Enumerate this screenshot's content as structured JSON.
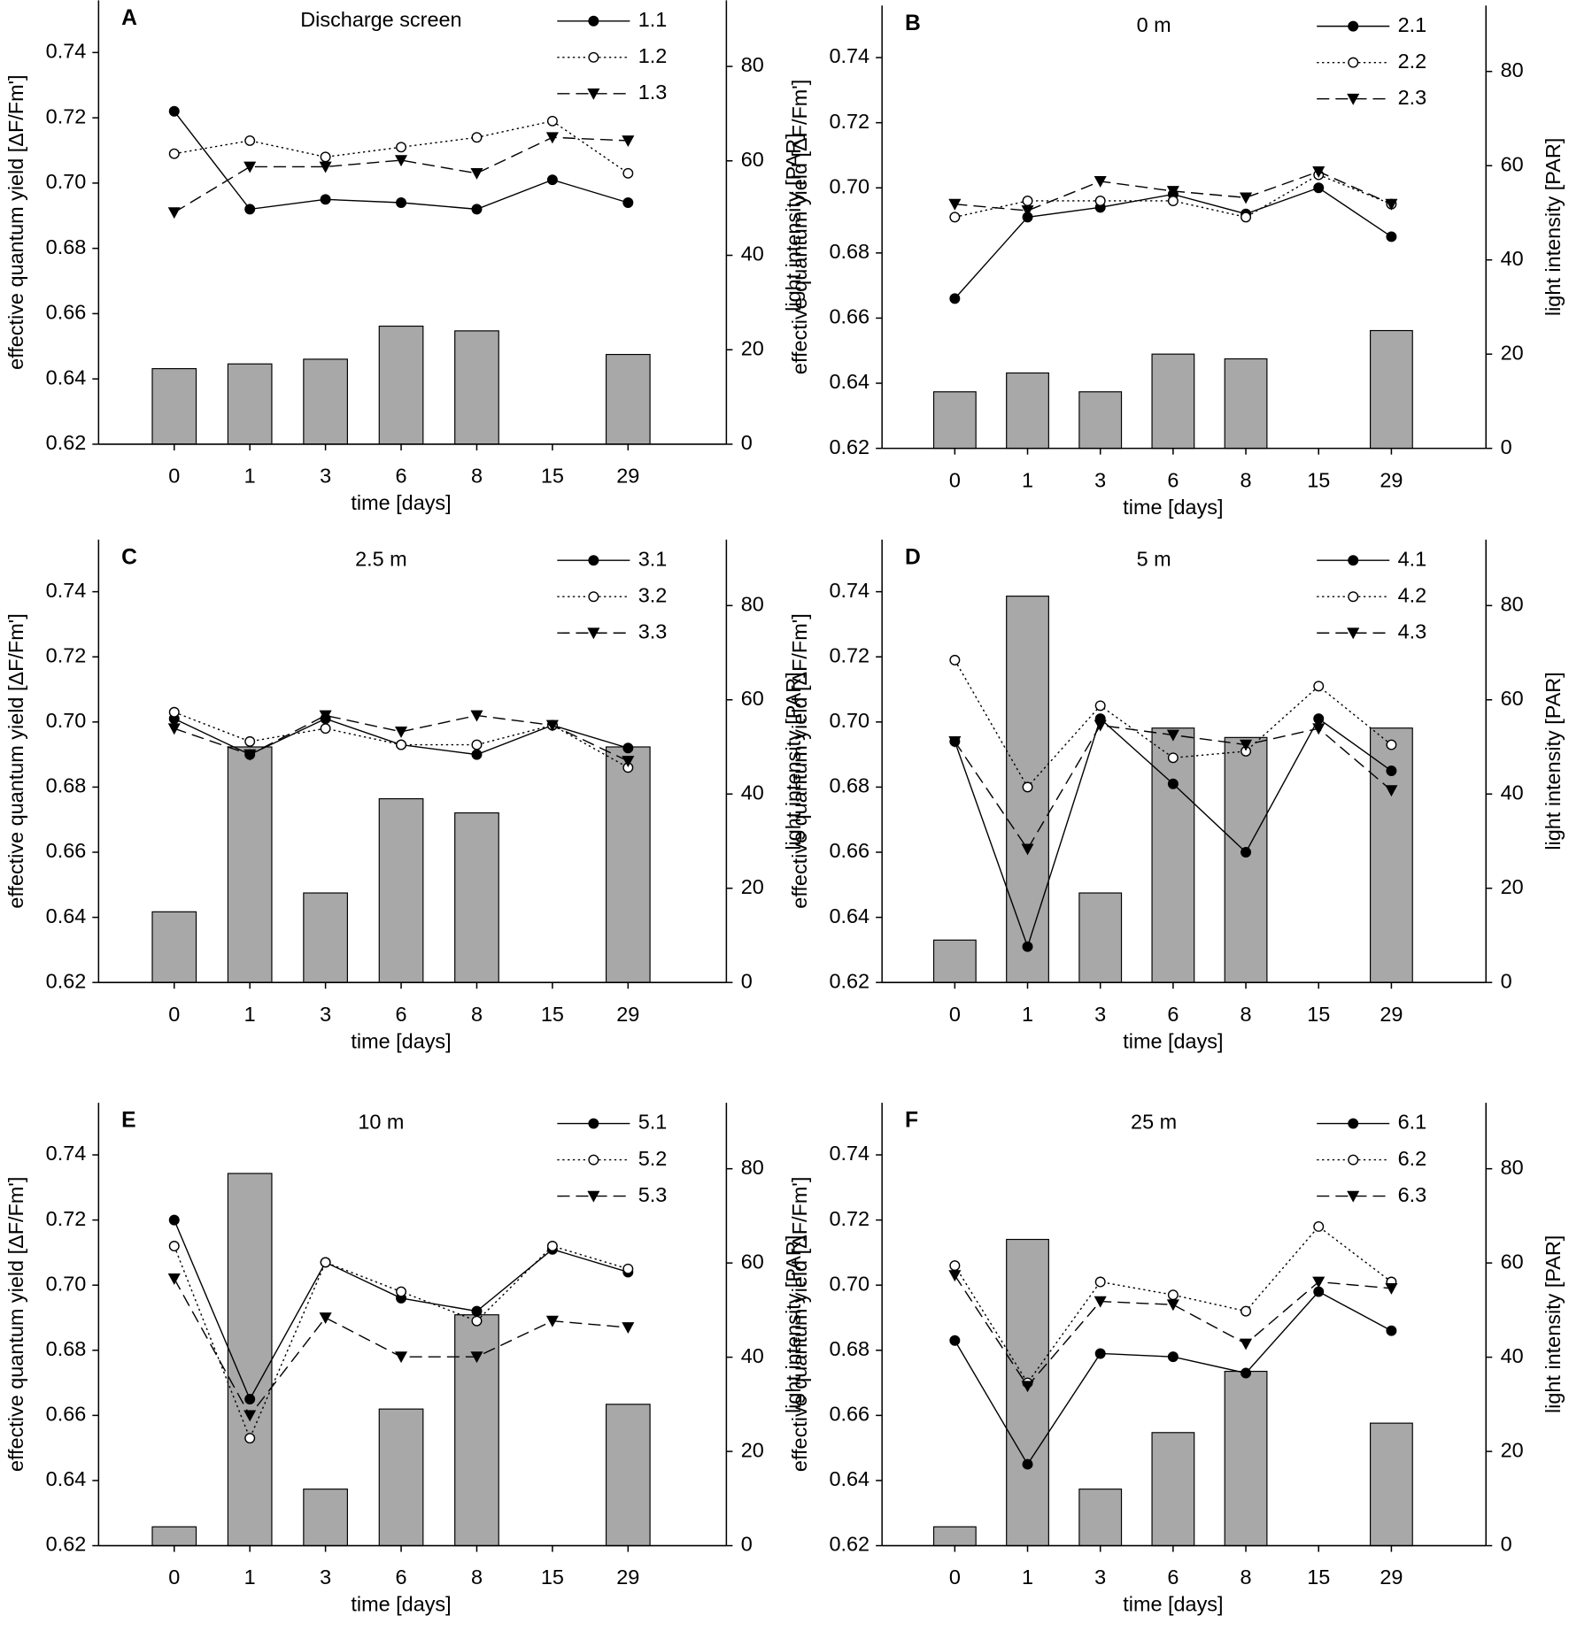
{
  "chart_data": [
    {
      "type": "bar-line",
      "panel_label": "A",
      "title": "Discharge screen",
      "xlabel": "time [days]",
      "ylabel": "effective quantum yield [ΔF/Fm']",
      "y2label": "light intensity [PAR]",
      "categories": [
        "0",
        "1",
        "3",
        "6",
        "8",
        "15",
        "29"
      ],
      "series": [
        {
          "name": "1.1",
          "color": "#000000",
          "line_style": "solid",
          "marker": "filled-circle",
          "values": [
            0.722,
            0.692,
            0.695,
            0.694,
            0.692,
            0.701,
            0.694
          ]
        },
        {
          "name": "1.2",
          "color": "#000000",
          "line_style": "dotted",
          "marker": "open-circle",
          "values": [
            0.709,
            0.713,
            0.708,
            0.711,
            0.714,
            0.719,
            0.703
          ]
        },
        {
          "name": "1.3",
          "color": "#000000",
          "line_style": "dashed",
          "marker": "filled-triangle",
          "values": [
            0.691,
            0.705,
            0.705,
            0.707,
            0.703,
            0.714,
            0.713
          ]
        }
      ],
      "bars": {
        "axis": "y2",
        "color": "#a8a8a8",
        "values": [
          16,
          17,
          18,
          25,
          24,
          null,
          19
        ]
      },
      "ylim": [
        0.62,
        0.756
      ],
      "yticks": [
        0.62,
        0.64,
        0.66,
        0.68,
        {
          "value": 0.7,
          "label": "0.70"
        },
        0.72,
        0.74
      ],
      "y2lim": [
        0,
        94
      ],
      "y2ticks": [
        0,
        20,
        40,
        60,
        80
      ]
    },
    {
      "type": "bar-line",
      "panel_label": "B",
      "title": "0 m",
      "xlabel": "time [days]",
      "ylabel": "effective quantum yield [ΔF/Fm']",
      "y2label": "light intensity [PAR]",
      "categories": [
        "0",
        "1",
        "3",
        "6",
        "8",
        "15",
        "29"
      ],
      "series": [
        {
          "name": "2.1",
          "color": "#000000",
          "line_style": "solid",
          "marker": "filled-circle",
          "values": [
            0.666,
            0.691,
            0.694,
            0.698,
            0.692,
            0.7,
            0.685
          ]
        },
        {
          "name": "2.2",
          "color": "#000000",
          "line_style": "dotted",
          "marker": "open-circle",
          "values": [
            0.691,
            0.696,
            0.696,
            0.696,
            0.691,
            0.704,
            0.695
          ]
        },
        {
          "name": "2.3",
          "color": "#000000",
          "line_style": "dashed",
          "marker": "filled-triangle",
          "values": [
            0.695,
            0.693,
            0.702,
            0.699,
            0.697,
            0.705,
            0.695
          ]
        }
      ],
      "bars": {
        "axis": "y2",
        "color": "#a8a8a8",
        "values": [
          12,
          16,
          12,
          20,
          19,
          null,
          25
        ]
      },
      "ylim": [
        0.62,
        0.756
      ],
      "yticks": [
        0.62,
        0.64,
        0.66,
        0.68,
        {
          "value": 0.7,
          "label": "0.70"
        },
        0.72,
        0.74
      ],
      "y2lim": [
        0,
        94
      ],
      "y2ticks": [
        0,
        20,
        40,
        60,
        80
      ]
    },
    {
      "type": "bar-line",
      "panel_label": "C",
      "title": "2.5 m",
      "xlabel": "time [days]",
      "ylabel": "effective quantum yield [ΔF/Fm']",
      "y2label": "light intensity [PAR]",
      "categories": [
        "0",
        "1",
        "3",
        "6",
        "8",
        "15",
        "29"
      ],
      "series": [
        {
          "name": "3.1",
          "color": "#000000",
          "line_style": "solid",
          "marker": "filled-circle",
          "values": [
            0.701,
            0.69,
            0.701,
            0.693,
            0.69,
            0.699,
            0.692
          ]
        },
        {
          "name": "3.2",
          "color": "#000000",
          "line_style": "dotted",
          "marker": "open-circle",
          "values": [
            0.703,
            0.694,
            0.698,
            0.693,
            0.693,
            0.699,
            0.686
          ]
        },
        {
          "name": "3.3",
          "color": "#000000",
          "line_style": "dashed",
          "marker": "filled-triangle",
          "values": [
            0.698,
            0.69,
            0.702,
            0.697,
            0.702,
            0.699,
            0.688
          ]
        }
      ],
      "bars": {
        "axis": "y2",
        "color": "#a8a8a8",
        "values": [
          15,
          50,
          19,
          39,
          36,
          null,
          50
        ]
      },
      "ylim": [
        0.62,
        0.756
      ],
      "yticks": [
        0.62,
        0.64,
        0.66,
        0.68,
        {
          "value": 0.7,
          "label": "0.70"
        },
        0.72,
        0.74
      ],
      "y2lim": [
        0,
        94
      ],
      "y2ticks": [
        0,
        20,
        40,
        60,
        80
      ]
    },
    {
      "type": "bar-line",
      "panel_label": "D",
      "title": "5 m",
      "xlabel": "time [days]",
      "ylabel": "effective quantum yield [ΔF/Fm']",
      "y2label": "light intensity [PAR]",
      "categories": [
        "0",
        "1",
        "3",
        "6",
        "8",
        "15",
        "29"
      ],
      "series": [
        {
          "name": "4.1",
          "color": "#000000",
          "line_style": "solid",
          "marker": "filled-circle",
          "values": [
            0.694,
            0.631,
            0.701,
            0.681,
            0.66,
            0.701,
            0.685
          ]
        },
        {
          "name": "4.2",
          "color": "#000000",
          "line_style": "dotted",
          "marker": "open-circle",
          "values": [
            0.719,
            0.68,
            0.705,
            0.689,
            0.691,
            0.711,
            0.693
          ]
        },
        {
          "name": "4.3",
          "color": "#000000",
          "line_style": "dashed",
          "marker": "filled-triangle",
          "values": [
            0.694,
            0.661,
            0.699,
            0.696,
            0.693,
            0.698,
            0.679
          ]
        }
      ],
      "bars": {
        "axis": "y2",
        "color": "#a8a8a8",
        "values": [
          9,
          82,
          19,
          54,
          52,
          null,
          54
        ]
      },
      "ylim": [
        0.62,
        0.756
      ],
      "yticks": [
        0.62,
        0.64,
        0.66,
        0.68,
        {
          "value": 0.7,
          "label": "0.70"
        },
        0.72,
        0.74
      ],
      "y2lim": [
        0,
        94
      ],
      "y2ticks": [
        0,
        20,
        40,
        60,
        80
      ]
    },
    {
      "type": "bar-line",
      "panel_label": "E",
      "title": "10 m",
      "xlabel": "time [days]",
      "ylabel": "effective quantum yield [ΔF/Fm']",
      "y2label": "light intensity [PAR]",
      "categories": [
        "0",
        "1",
        "3",
        "6",
        "8",
        "15",
        "29"
      ],
      "series": [
        {
          "name": "5.1",
          "color": "#000000",
          "line_style": "solid",
          "marker": "filled-circle",
          "values": [
            0.72,
            0.665,
            0.707,
            0.696,
            0.692,
            0.711,
            0.704
          ]
        },
        {
          "name": "5.2",
          "color": "#000000",
          "line_style": "dotted",
          "marker": "open-circle",
          "values": [
            0.712,
            0.653,
            0.707,
            0.698,
            0.689,
            0.712,
            0.705
          ]
        },
        {
          "name": "5.3",
          "color": "#000000",
          "line_style": "dashed",
          "marker": "filled-triangle",
          "values": [
            0.702,
            0.66,
            0.69,
            0.678,
            0.678,
            0.689,
            0.687
          ]
        }
      ],
      "bars": {
        "axis": "y2",
        "color": "#a8a8a8",
        "values": [
          4,
          79,
          12,
          29,
          49,
          null,
          30
        ]
      },
      "ylim": [
        0.62,
        0.756
      ],
      "yticks": [
        0.62,
        0.64,
        0.66,
        0.68,
        {
          "value": 0.7,
          "label": "0.70"
        },
        0.72,
        0.74
      ],
      "y2lim": [
        0,
        94
      ],
      "y2ticks": [
        0,
        20,
        40,
        60,
        80
      ]
    },
    {
      "type": "bar-line",
      "panel_label": "F",
      "title": "25 m",
      "xlabel": "time [days]",
      "ylabel": "effective quantum yield [ΔF/Fm']",
      "y2label": "light intensity [PAR]",
      "categories": [
        "0",
        "1",
        "3",
        "6",
        "8",
        "15",
        "29"
      ],
      "series": [
        {
          "name": "6.1",
          "color": "#000000",
          "line_style": "solid",
          "marker": "filled-circle",
          "values": [
            0.683,
            0.645,
            0.679,
            0.678,
            0.673,
            0.698,
            0.686
          ]
        },
        {
          "name": "6.2",
          "color": "#000000",
          "line_style": "dotted",
          "marker": "open-circle",
          "values": [
            0.706,
            0.67,
            0.701,
            0.697,
            0.692,
            0.718,
            0.701
          ]
        },
        {
          "name": "6.3",
          "color": "#000000",
          "line_style": "dashed",
          "marker": "filled-triangle",
          "values": [
            0.703,
            0.669,
            0.695,
            0.694,
            0.682,
            0.701,
            0.699
          ]
        }
      ],
      "bars": {
        "axis": "y2",
        "color": "#a8a8a8",
        "values": [
          4,
          65,
          12,
          24,
          37,
          null,
          26
        ]
      },
      "ylim": [
        0.62,
        0.756
      ],
      "yticks": [
        0.62,
        0.64,
        0.66,
        0.68,
        {
          "value": 0.7,
          "label": "0.70"
        },
        0.72,
        0.74
      ],
      "y2lim": [
        0,
        94
      ],
      "y2ticks": [
        0,
        20,
        40,
        60,
        80
      ]
    }
  ]
}
